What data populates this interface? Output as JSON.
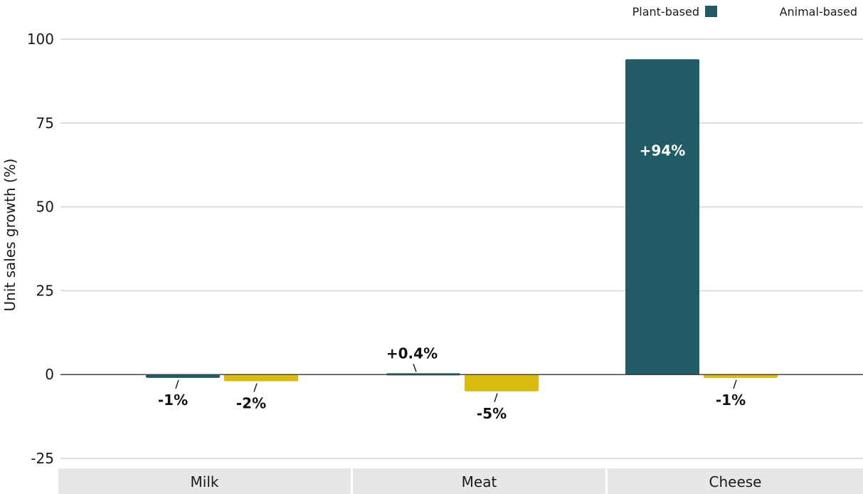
{
  "chart_data": {
    "type": "bar",
    "categories": [
      "Milk",
      "Meat",
      "Cheese"
    ],
    "series": [
      {
        "name": "Plant-based",
        "color": "#215c66",
        "values": [
          -1,
          0.4,
          94
        ],
        "labels": [
          "-1%",
          "+0.4%",
          "+94%"
        ]
      },
      {
        "name": "Animal-based",
        "color": "#d9bc0d",
        "values": [
          -2,
          -5,
          -1
        ],
        "labels": [
          "-2%",
          "-5%",
          "-1%"
        ]
      }
    ],
    "ylabel": "Unit sales growth (%)",
    "xlabel": "",
    "ylim": [
      -25,
      100
    ],
    "yticks": [
      "100",
      "75",
      "50",
      "25",
      "0",
      "-25"
    ],
    "grid": true,
    "legend_position": "top-right"
  }
}
